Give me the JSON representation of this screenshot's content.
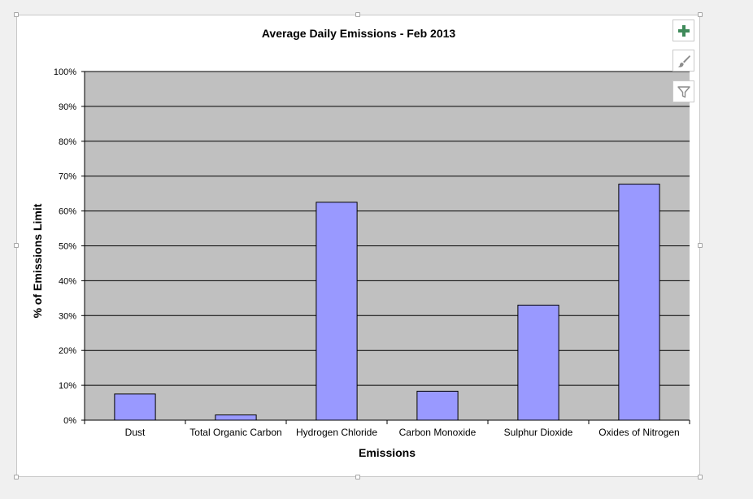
{
  "chart_data": {
    "type": "bar",
    "title": "Average Daily Emissions - Feb 2013",
    "xlabel": "Emissions",
    "ylabel": "% of Emissions Limit",
    "categories": [
      "Dust",
      "Total Organic Carbon",
      "Hydrogen Chloride",
      "Carbon Monoxide",
      "Sulphur Dioxide",
      "Oxides of Nitrogen"
    ],
    "values": [
      0.075,
      0.015,
      0.625,
      0.083,
      0.33,
      0.677
    ],
    "ylim": [
      0,
      1
    ],
    "yticks": [
      "0%",
      "10%",
      "20%",
      "30%",
      "40%",
      "50%",
      "60%",
      "70%",
      "80%",
      "90%",
      "100%"
    ],
    "grid": true,
    "legend": "none",
    "colors": {
      "bar": "#9999ff",
      "plot_background": "#c0c0c0",
      "gridline": "#000000"
    }
  },
  "toolbar": {
    "buttons": [
      {
        "name": "chart-elements-button",
        "icon": "plus-icon"
      },
      {
        "name": "chart-styles-button",
        "icon": "paintbrush-icon"
      },
      {
        "name": "chart-filters-button",
        "icon": "filter-icon"
      }
    ]
  }
}
